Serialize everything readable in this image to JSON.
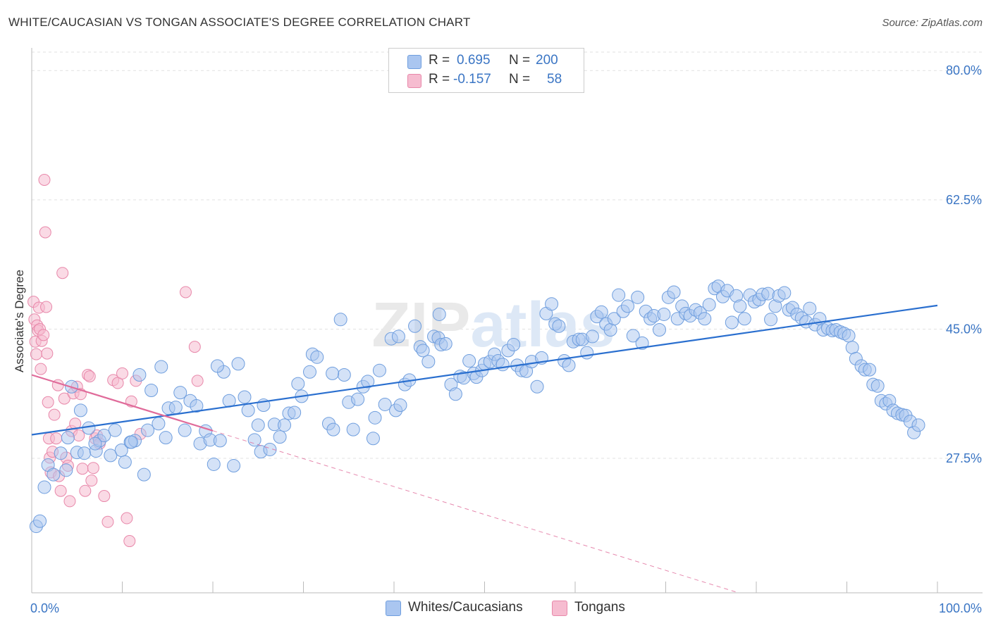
{
  "title": "WHITE/CAUCASIAN VS TONGAN ASSOCIATE'S DEGREE CORRELATION CHART",
  "source": "Source: ZipAtlas.com",
  "legend_top": [
    {
      "r_label": "R =",
      "r_value": "0.695",
      "n_label": "N =",
      "n_value": "200",
      "color": "#aac6f0"
    },
    {
      "r_label": "R =",
      "r_value": "-0.157",
      "n_label": "N =",
      "n_value": "58",
      "color": "#f6bcd0"
    }
  ],
  "legend_bottom": [
    {
      "label": "Whites/Caucasians",
      "color": "#aac6f0"
    },
    {
      "label": "Tongans",
      "color": "#f6bcd0"
    }
  ],
  "colors": {
    "blue_fill": "#aac6f0",
    "blue_stroke": "#6f9ede",
    "blue_line": "#2a6fcf",
    "pink_fill": "#f6bcd0",
    "pink_stroke": "#e888aa",
    "pink_line": "#e06b9a",
    "axis_text": "#3a75c4",
    "grid": "#e2e2e2"
  },
  "chart_data": {
    "type": "scatter",
    "title": "WHITE/CAUCASIAN VS TONGAN ASSOCIATE'S DEGREE CORRELATION CHART",
    "xlabel": "",
    "ylabel": "Associate's Degree",
    "xlim": [
      0,
      100
    ],
    "ylim": [
      9.3,
      82.5
    ],
    "x_tick_labels": [
      "0.0%",
      "100.0%"
    ],
    "y_ticks": [
      27.5,
      45.0,
      62.5,
      80.0
    ],
    "y_tick_labels": [
      "27.5%",
      "45.0%",
      "62.5%",
      "80.0%"
    ],
    "grid": "horizontal dashed",
    "legend_placement": "top-center",
    "watermark": "ZIPatlas",
    "series": [
      {
        "name": "Whites/Caucasians",
        "R": 0.695,
        "N": 200,
        "trend": {
          "x": [
            0,
            100
          ],
          "y": [
            30.7,
            48.2
          ]
        },
        "points": [
          [
            0.5,
            18.3
          ],
          [
            0.9,
            19.0
          ],
          [
            1.4,
            23.6
          ],
          [
            1.8,
            26.6
          ],
          [
            2.4,
            25.3
          ],
          [
            3.2,
            28.2
          ],
          [
            3.8,
            25.9
          ],
          [
            4.0,
            30.3
          ],
          [
            4.4,
            37.2
          ],
          [
            5.0,
            28.3
          ],
          [
            5.4,
            34.0
          ],
          [
            5.8,
            28.2
          ],
          [
            6.3,
            31.6
          ],
          [
            7.1,
            28.5
          ],
          [
            7.5,
            29.9
          ],
          [
            8.0,
            30.6
          ],
          [
            8.7,
            27.9
          ],
          [
            9.2,
            31.3
          ],
          [
            9.9,
            28.6
          ],
          [
            10.3,
            27.0
          ],
          [
            10.9,
            29.7
          ],
          [
            11.4,
            29.9
          ],
          [
            11.9,
            38.8
          ],
          [
            12.4,
            25.3
          ],
          [
            12.8,
            31.3
          ],
          [
            13.2,
            36.7
          ],
          [
            14.0,
            32.2
          ],
          [
            14.3,
            39.9
          ],
          [
            14.8,
            30.3
          ],
          [
            15.1,
            34.3
          ],
          [
            15.9,
            34.4
          ],
          [
            16.4,
            36.4
          ],
          [
            16.9,
            31.3
          ],
          [
            17.5,
            35.3
          ],
          [
            18.2,
            34.6
          ],
          [
            18.6,
            29.5
          ],
          [
            19.2,
            31.2
          ],
          [
            19.7,
            30.0
          ],
          [
            20.1,
            26.7
          ],
          [
            20.8,
            29.9
          ],
          [
            21.2,
            39.2
          ],
          [
            21.8,
            35.3
          ],
          [
            22.3,
            26.5
          ],
          [
            22.8,
            40.3
          ],
          [
            23.5,
            35.8
          ],
          [
            23.9,
            34.0
          ],
          [
            24.6,
            30.0
          ],
          [
            25.3,
            28.4
          ],
          [
            25.6,
            34.7
          ],
          [
            26.3,
            28.7
          ],
          [
            26.8,
            32.1
          ],
          [
            27.4,
            30.4
          ],
          [
            27.9,
            32.0
          ],
          [
            28.4,
            33.6
          ],
          [
            29.0,
            33.7
          ],
          [
            29.4,
            37.6
          ],
          [
            29.8,
            35.9
          ],
          [
            30.7,
            39.2
          ],
          [
            31.0,
            41.6
          ],
          [
            31.5,
            41.2
          ],
          [
            32.8,
            32.2
          ],
          [
            33.3,
            31.4
          ],
          [
            34.1,
            46.3
          ],
          [
            34.5,
            38.8
          ],
          [
            35.0,
            35.1
          ],
          [
            35.5,
            31.4
          ],
          [
            36.0,
            35.5
          ],
          [
            36.6,
            37.2
          ],
          [
            37.1,
            37.9
          ],
          [
            37.7,
            30.2
          ],
          [
            37.9,
            33.0
          ],
          [
            38.4,
            39.4
          ],
          [
            39.0,
            34.8
          ],
          [
            39.7,
            43.7
          ],
          [
            40.2,
            34.0
          ],
          [
            40.7,
            34.7
          ],
          [
            41.2,
            37.5
          ],
          [
            41.7,
            38.1
          ],
          [
            42.3,
            45.4
          ],
          [
            42.9,
            42.6
          ],
          [
            43.2,
            42.1
          ],
          [
            43.8,
            40.6
          ],
          [
            44.4,
            44.0
          ],
          [
            44.9,
            43.8
          ],
          [
            45.2,
            42.9
          ],
          [
            45.7,
            43.0
          ],
          [
            46.3,
            37.5
          ],
          [
            46.8,
            36.2
          ],
          [
            47.3,
            38.6
          ],
          [
            47.7,
            38.4
          ],
          [
            48.3,
            40.7
          ],
          [
            48.8,
            39.0
          ],
          [
            49.1,
            38.5
          ],
          [
            49.7,
            39.4
          ],
          [
            50.0,
            40.3
          ],
          [
            50.6,
            40.6
          ],
          [
            51.1,
            41.6
          ],
          [
            51.5,
            40.7
          ],
          [
            52.0,
            40.2
          ],
          [
            52.6,
            42.1
          ],
          [
            53.2,
            42.9
          ],
          [
            53.6,
            40.1
          ],
          [
            54.1,
            39.4
          ],
          [
            54.6,
            39.3
          ],
          [
            55.2,
            40.6
          ],
          [
            55.8,
            37.2
          ],
          [
            56.3,
            41.1
          ],
          [
            56.8,
            47.1
          ],
          [
            57.4,
            48.4
          ],
          [
            57.8,
            45.7
          ],
          [
            58.2,
            45.4
          ],
          [
            58.8,
            40.7
          ],
          [
            59.3,
            40.1
          ],
          [
            59.8,
            43.3
          ],
          [
            60.4,
            43.6
          ],
          [
            60.8,
            43.6
          ],
          [
            61.3,
            41.8
          ],
          [
            61.9,
            44.0
          ],
          [
            62.4,
            46.7
          ],
          [
            62.9,
            47.3
          ],
          [
            63.4,
            45.7
          ],
          [
            63.9,
            44.9
          ],
          [
            64.3,
            46.4
          ],
          [
            64.8,
            49.6
          ],
          [
            65.3,
            47.4
          ],
          [
            65.8,
            48.1
          ],
          [
            66.4,
            44.1
          ],
          [
            66.9,
            49.3
          ],
          [
            67.4,
            43.1
          ],
          [
            67.8,
            47.4
          ],
          [
            68.3,
            46.4
          ],
          [
            68.7,
            46.8
          ],
          [
            69.3,
            44.9
          ],
          [
            69.8,
            47.0
          ],
          [
            70.3,
            49.3
          ],
          [
            70.9,
            50.0
          ],
          [
            71.3,
            46.4
          ],
          [
            71.8,
            48.1
          ],
          [
            72.2,
            47.1
          ],
          [
            72.7,
            46.8
          ],
          [
            73.3,
            47.6
          ],
          [
            73.8,
            47.2
          ],
          [
            74.3,
            46.4
          ],
          [
            74.8,
            48.3
          ],
          [
            75.4,
            50.5
          ],
          [
            75.8,
            50.8
          ],
          [
            76.3,
            49.4
          ],
          [
            76.8,
            50.2
          ],
          [
            77.3,
            45.9
          ],
          [
            77.8,
            49.5
          ],
          [
            78.2,
            48.1
          ],
          [
            78.7,
            46.4
          ],
          [
            79.3,
            49.6
          ],
          [
            79.8,
            48.7
          ],
          [
            80.3,
            49.0
          ],
          [
            80.7,
            49.7
          ],
          [
            81.3,
            49.8
          ],
          [
            81.6,
            46.3
          ],
          [
            82.1,
            48.1
          ],
          [
            82.5,
            49.5
          ],
          [
            83.1,
            49.9
          ],
          [
            83.6,
            47.6
          ],
          [
            84.0,
            47.9
          ],
          [
            84.5,
            47.0
          ],
          [
            85.0,
            46.5
          ],
          [
            85.5,
            46.0
          ],
          [
            85.9,
            47.8
          ],
          [
            86.5,
            45.6
          ],
          [
            87.0,
            46.4
          ],
          [
            87.4,
            44.9
          ],
          [
            87.9,
            45.1
          ],
          [
            88.4,
            44.8
          ],
          [
            88.8,
            44.9
          ],
          [
            89.3,
            44.6
          ],
          [
            89.7,
            44.4
          ],
          [
            90.2,
            44.1
          ],
          [
            90.6,
            42.5
          ],
          [
            91.0,
            41.0
          ],
          [
            91.6,
            40.0
          ],
          [
            92.0,
            39.5
          ],
          [
            92.5,
            39.5
          ],
          [
            92.9,
            37.5
          ],
          [
            93.4,
            37.3
          ],
          [
            93.8,
            35.3
          ],
          [
            94.3,
            34.9
          ],
          [
            94.7,
            35.3
          ],
          [
            95.1,
            34.0
          ],
          [
            95.6,
            33.6
          ],
          [
            96.1,
            33.4
          ],
          [
            96.5,
            33.3
          ],
          [
            97.0,
            32.5
          ],
          [
            97.4,
            31.0
          ],
          [
            97.9,
            32.0
          ],
          [
            45.0,
            47.0
          ],
          [
            40.5,
            44.0
          ],
          [
            33.2,
            39.0
          ],
          [
            25.0,
            32.0
          ],
          [
            20.5,
            40.0
          ],
          [
            11.0,
            29.7
          ],
          [
            7.0,
            29.5
          ]
        ]
      },
      {
        "name": "Tongans",
        "R": -0.157,
        "N": 58,
        "trend": {
          "x": [
            0,
            100
          ],
          "y": [
            38.8,
            1.0
          ]
        },
        "trend_solid_x": [
          0,
          20
        ],
        "points": [
          [
            0.2,
            48.7
          ],
          [
            0.3,
            46.3
          ],
          [
            0.4,
            43.3
          ],
          [
            0.5,
            41.6
          ],
          [
            0.6,
            45.5
          ],
          [
            0.7,
            44.8
          ],
          [
            0.8,
            47.9
          ],
          [
            0.9,
            45.0
          ],
          [
            1.0,
            39.6
          ],
          [
            1.1,
            43.4
          ],
          [
            1.3,
            44.2
          ],
          [
            1.4,
            65.2
          ],
          [
            1.5,
            58.1
          ],
          [
            1.6,
            48.0
          ],
          [
            1.7,
            41.7
          ],
          [
            1.8,
            35.1
          ],
          [
            1.9,
            30.2
          ],
          [
            2.0,
            27.6
          ],
          [
            2.1,
            25.6
          ],
          [
            2.3,
            28.4
          ],
          [
            2.5,
            33.4
          ],
          [
            2.7,
            30.2
          ],
          [
            2.9,
            37.4
          ],
          [
            3.0,
            25.1
          ],
          [
            3.2,
            23.1
          ],
          [
            3.4,
            52.6
          ],
          [
            3.6,
            35.6
          ],
          [
            3.8,
            27.6
          ],
          [
            4.0,
            26.5
          ],
          [
            4.2,
            21.7
          ],
          [
            4.4,
            31.2
          ],
          [
            4.6,
            36.3
          ],
          [
            4.8,
            32.2
          ],
          [
            5.0,
            37.2
          ],
          [
            5.2,
            30.6
          ],
          [
            5.4,
            36.2
          ],
          [
            5.6,
            26.1
          ],
          [
            5.9,
            23.1
          ],
          [
            6.2,
            38.8
          ],
          [
            6.4,
            38.6
          ],
          [
            6.6,
            24.5
          ],
          [
            6.8,
            26.2
          ],
          [
            7.0,
            30.2
          ],
          [
            7.2,
            30.6
          ],
          [
            7.5,
            29.5
          ],
          [
            8.0,
            22.4
          ],
          [
            8.4,
            18.9
          ],
          [
            9.0,
            38.1
          ],
          [
            9.5,
            37.7
          ],
          [
            10.0,
            39.0
          ],
          [
            10.5,
            19.4
          ],
          [
            10.8,
            16.3
          ],
          [
            11.0,
            35.2
          ],
          [
            11.5,
            38.0
          ],
          [
            12.0,
            30.8
          ],
          [
            17.0,
            50.0
          ],
          [
            18.0,
            42.6
          ],
          [
            18.3,
            38.0
          ]
        ]
      }
    ]
  }
}
